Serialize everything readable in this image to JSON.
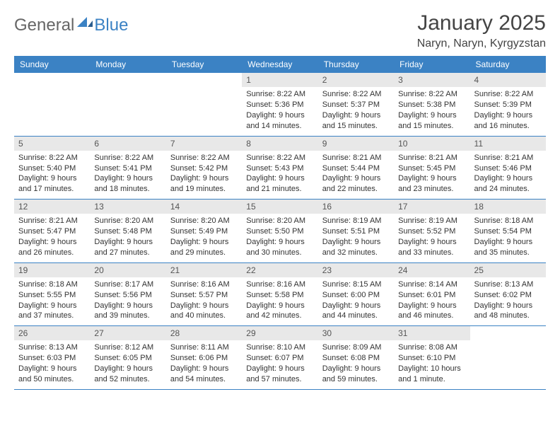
{
  "logo": {
    "text1": "General",
    "text2": "Blue"
  },
  "title": "January 2025",
  "location": "Naryn, Naryn, Kyrgyzstan",
  "colors": {
    "header_bg": "#3b82c4",
    "header_text": "#ffffff",
    "daynum_bg": "#e8e8e8",
    "border": "#3b82c4",
    "page_bg": "#ffffff",
    "text": "#333333"
  },
  "weekdays": [
    "Sunday",
    "Monday",
    "Tuesday",
    "Wednesday",
    "Thursday",
    "Friday",
    "Saturday"
  ],
  "weeks": [
    [
      null,
      null,
      null,
      {
        "n": "1",
        "sr": "8:22 AM",
        "ss": "5:36 PM",
        "dl": "9 hours and 14 minutes."
      },
      {
        "n": "2",
        "sr": "8:22 AM",
        "ss": "5:37 PM",
        "dl": "9 hours and 15 minutes."
      },
      {
        "n": "3",
        "sr": "8:22 AM",
        "ss": "5:38 PM",
        "dl": "9 hours and 15 minutes."
      },
      {
        "n": "4",
        "sr": "8:22 AM",
        "ss": "5:39 PM",
        "dl": "9 hours and 16 minutes."
      }
    ],
    [
      {
        "n": "5",
        "sr": "8:22 AM",
        "ss": "5:40 PM",
        "dl": "9 hours and 17 minutes."
      },
      {
        "n": "6",
        "sr": "8:22 AM",
        "ss": "5:41 PM",
        "dl": "9 hours and 18 minutes."
      },
      {
        "n": "7",
        "sr": "8:22 AM",
        "ss": "5:42 PM",
        "dl": "9 hours and 19 minutes."
      },
      {
        "n": "8",
        "sr": "8:22 AM",
        "ss": "5:43 PM",
        "dl": "9 hours and 21 minutes."
      },
      {
        "n": "9",
        "sr": "8:21 AM",
        "ss": "5:44 PM",
        "dl": "9 hours and 22 minutes."
      },
      {
        "n": "10",
        "sr": "8:21 AM",
        "ss": "5:45 PM",
        "dl": "9 hours and 23 minutes."
      },
      {
        "n": "11",
        "sr": "8:21 AM",
        "ss": "5:46 PM",
        "dl": "9 hours and 24 minutes."
      }
    ],
    [
      {
        "n": "12",
        "sr": "8:21 AM",
        "ss": "5:47 PM",
        "dl": "9 hours and 26 minutes."
      },
      {
        "n": "13",
        "sr": "8:20 AM",
        "ss": "5:48 PM",
        "dl": "9 hours and 27 minutes."
      },
      {
        "n": "14",
        "sr": "8:20 AM",
        "ss": "5:49 PM",
        "dl": "9 hours and 29 minutes."
      },
      {
        "n": "15",
        "sr": "8:20 AM",
        "ss": "5:50 PM",
        "dl": "9 hours and 30 minutes."
      },
      {
        "n": "16",
        "sr": "8:19 AM",
        "ss": "5:51 PM",
        "dl": "9 hours and 32 minutes."
      },
      {
        "n": "17",
        "sr": "8:19 AM",
        "ss": "5:52 PM",
        "dl": "9 hours and 33 minutes."
      },
      {
        "n": "18",
        "sr": "8:18 AM",
        "ss": "5:54 PM",
        "dl": "9 hours and 35 minutes."
      }
    ],
    [
      {
        "n": "19",
        "sr": "8:18 AM",
        "ss": "5:55 PM",
        "dl": "9 hours and 37 minutes."
      },
      {
        "n": "20",
        "sr": "8:17 AM",
        "ss": "5:56 PM",
        "dl": "9 hours and 39 minutes."
      },
      {
        "n": "21",
        "sr": "8:16 AM",
        "ss": "5:57 PM",
        "dl": "9 hours and 40 minutes."
      },
      {
        "n": "22",
        "sr": "8:16 AM",
        "ss": "5:58 PM",
        "dl": "9 hours and 42 minutes."
      },
      {
        "n": "23",
        "sr": "8:15 AM",
        "ss": "6:00 PM",
        "dl": "9 hours and 44 minutes."
      },
      {
        "n": "24",
        "sr": "8:14 AM",
        "ss": "6:01 PM",
        "dl": "9 hours and 46 minutes."
      },
      {
        "n": "25",
        "sr": "8:13 AM",
        "ss": "6:02 PM",
        "dl": "9 hours and 48 minutes."
      }
    ],
    [
      {
        "n": "26",
        "sr": "8:13 AM",
        "ss": "6:03 PM",
        "dl": "9 hours and 50 minutes."
      },
      {
        "n": "27",
        "sr": "8:12 AM",
        "ss": "6:05 PM",
        "dl": "9 hours and 52 minutes."
      },
      {
        "n": "28",
        "sr": "8:11 AM",
        "ss": "6:06 PM",
        "dl": "9 hours and 54 minutes."
      },
      {
        "n": "29",
        "sr": "8:10 AM",
        "ss": "6:07 PM",
        "dl": "9 hours and 57 minutes."
      },
      {
        "n": "30",
        "sr": "8:09 AM",
        "ss": "6:08 PM",
        "dl": "9 hours and 59 minutes."
      },
      {
        "n": "31",
        "sr": "8:08 AM",
        "ss": "6:10 PM",
        "dl": "10 hours and 1 minute."
      },
      null
    ]
  ]
}
